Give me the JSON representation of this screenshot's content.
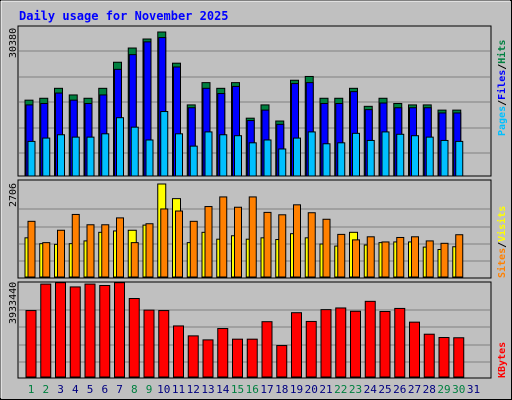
{
  "title": "Daily usage for November 2025",
  "colors": {
    "background": "#c0c0c0",
    "hits": "#008040",
    "files": "#0000ff",
    "pages": "#00c0ff",
    "visits": "#ffff00",
    "sites": "#ff8000",
    "kbytes": "#ff0000",
    "title": "#0000ff",
    "weekday_label": "#000080",
    "weekend_label": "#008040"
  },
  "legends": {
    "top": {
      "pages": "Pages",
      "files": "Files",
      "hits": "Hits"
    },
    "middle": {
      "sites": "Sites",
      "visits": "Visits"
    },
    "bottom": {
      "kbytes": "KBytes"
    }
  },
  "chart_data": [
    {
      "type": "bar",
      "panel": "hits-files-pages",
      "max_label": "30380",
      "ylim": [
        0,
        30380
      ],
      "categories": [
        "1",
        "2",
        "3",
        "4",
        "5",
        "6",
        "7",
        "8",
        "9",
        "10",
        "11",
        "12",
        "13",
        "14",
        "15",
        "16",
        "17",
        "18",
        "19",
        "20",
        "21",
        "22",
        "23",
        "24",
        "25",
        "26",
        "27",
        "28",
        "29",
        "30",
        "31"
      ],
      "series": [
        {
          "name": "Hits",
          "values": [
            16000,
            16400,
            18500,
            17100,
            16400,
            18500,
            24000,
            27000,
            28900,
            30380,
            23800,
            15000,
            19700,
            18500,
            19700,
            12200,
            15000,
            11600,
            20200,
            21000,
            16400,
            16400,
            18500,
            14700,
            16400,
            15300,
            15000,
            15000,
            13900,
            13900,
            0
          ]
        },
        {
          "name": "Files",
          "values": [
            15000,
            15300,
            17500,
            16000,
            15300,
            17100,
            22500,
            25600,
            28300,
            29200,
            23000,
            14400,
            18500,
            17400,
            18900,
            11700,
            13900,
            10900,
            19500,
            19700,
            15300,
            15300,
            17800,
            14000,
            15400,
            14400,
            14400,
            14400,
            13300,
            13300,
            0
          ]
        },
        {
          "name": "Pages",
          "values": [
            7300,
            8000,
            8700,
            8200,
            8200,
            8900,
            12300,
            10300,
            7600,
            13600,
            8900,
            6300,
            9300,
            8700,
            8500,
            7000,
            7600,
            5700,
            8000,
            9300,
            6800,
            7000,
            9000,
            7500,
            9300,
            8800,
            8500,
            8200,
            7500,
            7300,
            0
          ]
        }
      ]
    },
    {
      "type": "bar",
      "panel": "visits-sites",
      "max_label": "2706",
      "ylim": [
        0,
        2706
      ],
      "categories": [
        "1",
        "2",
        "3",
        "4",
        "5",
        "6",
        "7",
        "8",
        "9",
        "10",
        "11",
        "12",
        "13",
        "14",
        "15",
        "16",
        "17",
        "18",
        "19",
        "20",
        "21",
        "22",
        "23",
        "24",
        "25",
        "26",
        "27",
        "28",
        "29",
        "30",
        "31"
      ],
      "series": [
        {
          "name": "Visits",
          "values": [
            1140,
            970,
            950,
            970,
            1050,
            1300,
            1340,
            1360,
            1510,
            2706,
            2280,
            1000,
            1300,
            1100,
            1200,
            1100,
            1140,
            1090,
            1260,
            1140,
            960,
            900,
            1300,
            930,
            1000,
            1020,
            1020,
            870,
            800,
            880,
            0
          ]
        },
        {
          "name": "Sites",
          "values": [
            1620,
            1000,
            1360,
            1820,
            1520,
            1520,
            1720,
            1000,
            1550,
            1980,
            1920,
            1620,
            2050,
            2330,
            2030,
            2330,
            1880,
            1810,
            2100,
            1870,
            1680,
            1240,
            1080,
            1170,
            1020,
            1150,
            1170,
            1050,
            980,
            1230,
            0
          ]
        }
      ]
    },
    {
      "type": "bar",
      "panel": "kbytes",
      "max_label": "3933440",
      "ylim": [
        0,
        3933440
      ],
      "categories": [
        "1",
        "2",
        "3",
        "4",
        "5",
        "6",
        "7",
        "8",
        "9",
        "10",
        "11",
        "12",
        "13",
        "14",
        "15",
        "16",
        "17",
        "18",
        "19",
        "20",
        "21",
        "22",
        "23",
        "24",
        "25",
        "26",
        "27",
        "28",
        "29",
        "30",
        "31"
      ],
      "series": [
        {
          "name": "KBytes",
          "values": [
            2810000,
            3930000,
            3990000,
            3810000,
            3930000,
            3870000,
            3990000,
            3320000,
            2830000,
            2810000,
            2160000,
            1740000,
            1570000,
            2050000,
            1600000,
            1600000,
            2340000,
            1330000,
            2720000,
            2350000,
            2850000,
            2920000,
            2780000,
            3200000,
            2770000,
            2900000,
            2320000,
            1810000,
            1670000,
            1660000,
            0
          ]
        }
      ]
    }
  ],
  "x_labels": [
    {
      "label": "1",
      "weekend": true
    },
    {
      "label": "2",
      "weekend": true
    },
    {
      "label": "3",
      "weekend": false
    },
    {
      "label": "4",
      "weekend": false
    },
    {
      "label": "5",
      "weekend": false
    },
    {
      "label": "6",
      "weekend": false
    },
    {
      "label": "7",
      "weekend": false
    },
    {
      "label": "8",
      "weekend": true
    },
    {
      "label": "9",
      "weekend": true
    },
    {
      "label": "10",
      "weekend": false
    },
    {
      "label": "11",
      "weekend": false
    },
    {
      "label": "12",
      "weekend": false
    },
    {
      "label": "13",
      "weekend": false
    },
    {
      "label": "14",
      "weekend": false
    },
    {
      "label": "15",
      "weekend": true
    },
    {
      "label": "16",
      "weekend": true
    },
    {
      "label": "17",
      "weekend": false
    },
    {
      "label": "18",
      "weekend": false
    },
    {
      "label": "19",
      "weekend": false
    },
    {
      "label": "20",
      "weekend": false
    },
    {
      "label": "21",
      "weekend": false
    },
    {
      "label": "22",
      "weekend": true
    },
    {
      "label": "23",
      "weekend": true
    },
    {
      "label": "24",
      "weekend": false
    },
    {
      "label": "25",
      "weekend": false
    },
    {
      "label": "26",
      "weekend": false
    },
    {
      "label": "27",
      "weekend": false
    },
    {
      "label": "28",
      "weekend": false
    },
    {
      "label": "29",
      "weekend": true
    },
    {
      "label": "30",
      "weekend": true
    },
    {
      "label": "31",
      "weekend": false
    }
  ]
}
